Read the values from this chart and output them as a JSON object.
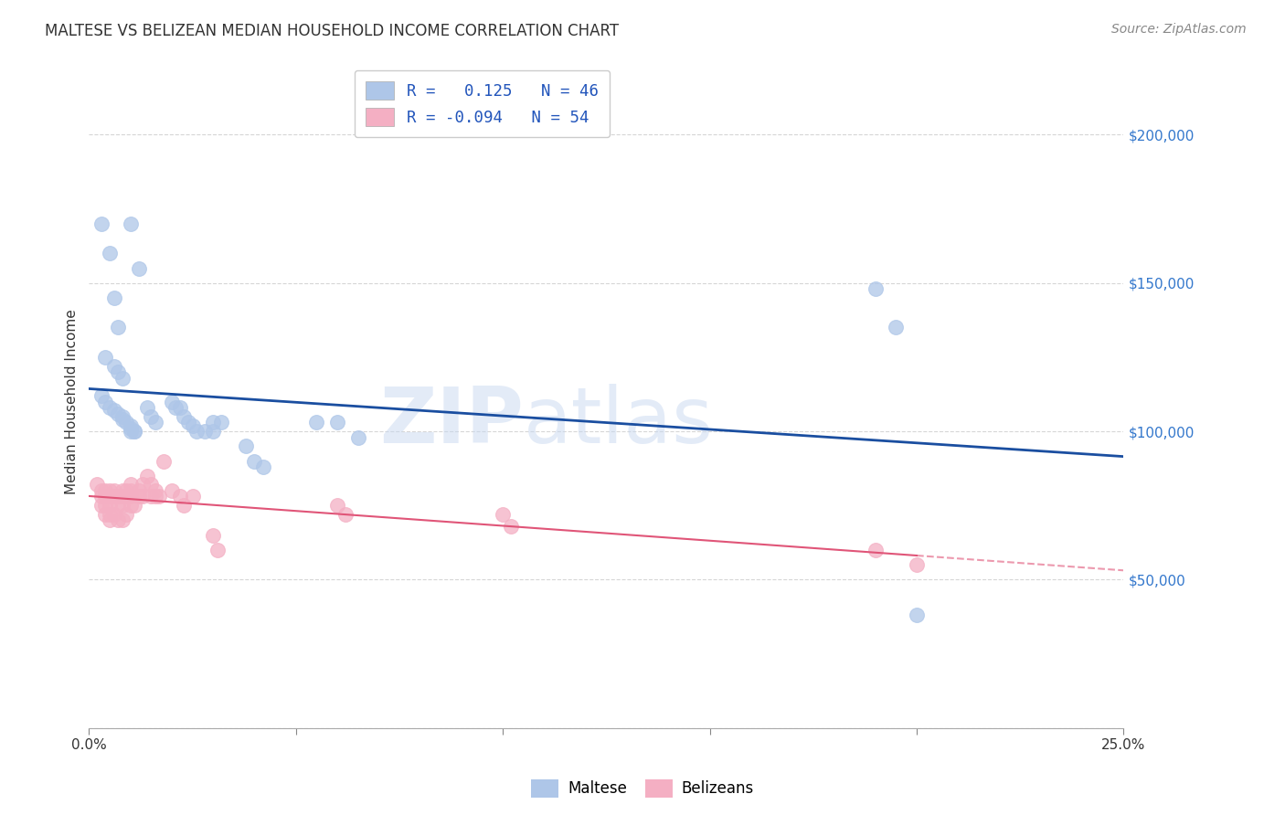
{
  "title": "MALTESE VS BELIZEAN MEDIAN HOUSEHOLD INCOME CORRELATION CHART",
  "source": "Source: ZipAtlas.com",
  "ylabel": "Median Household Income",
  "xlim": [
    0.0,
    0.25
  ],
  "ylim": [
    0,
    220000
  ],
  "yticks": [
    0,
    50000,
    100000,
    150000,
    200000
  ],
  "ytick_labels": [
    "",
    "$50,000",
    "$100,000",
    "$150,000",
    "$200,000"
  ],
  "xticks": [
    0.0,
    0.05,
    0.1,
    0.15,
    0.2,
    0.25
  ],
  "xtick_labels": [
    "0.0%",
    "",
    "",
    "",
    "",
    "25.0%"
  ],
  "blue_color": "#aec6e8",
  "pink_color": "#f4afc3",
  "blue_line_color": "#1a4ea0",
  "pink_line_color": "#e05578",
  "background_color": "#ffffff",
  "grid_color": "#cccccc",
  "maltese_x": [
    0.003,
    0.01,
    0.005,
    0.012,
    0.006,
    0.007,
    0.004,
    0.006,
    0.007,
    0.008,
    0.003,
    0.004,
    0.005,
    0.006,
    0.007,
    0.008,
    0.008,
    0.009,
    0.01,
    0.01,
    0.01,
    0.011,
    0.011,
    0.014,
    0.015,
    0.016,
    0.02,
    0.021,
    0.022,
    0.023,
    0.024,
    0.025,
    0.026,
    0.028,
    0.03,
    0.03,
    0.032,
    0.038,
    0.04,
    0.042,
    0.055,
    0.06,
    0.065,
    0.19,
    0.195,
    0.2
  ],
  "maltese_y": [
    170000,
    170000,
    160000,
    155000,
    145000,
    135000,
    125000,
    122000,
    120000,
    118000,
    112000,
    110000,
    108000,
    107000,
    106000,
    105000,
    104000,
    103000,
    102000,
    101000,
    100000,
    100000,
    100000,
    108000,
    105000,
    103000,
    110000,
    108000,
    108000,
    105000,
    103000,
    102000,
    100000,
    100000,
    100000,
    103000,
    103000,
    95000,
    90000,
    88000,
    103000,
    103000,
    98000,
    148000,
    135000,
    38000
  ],
  "belizean_x": [
    0.002,
    0.003,
    0.003,
    0.003,
    0.004,
    0.004,
    0.004,
    0.004,
    0.005,
    0.005,
    0.005,
    0.005,
    0.005,
    0.006,
    0.006,
    0.006,
    0.007,
    0.007,
    0.007,
    0.008,
    0.008,
    0.008,
    0.008,
    0.009,
    0.009,
    0.009,
    0.01,
    0.01,
    0.01,
    0.01,
    0.011,
    0.012,
    0.012,
    0.013,
    0.013,
    0.014,
    0.015,
    0.015,
    0.016,
    0.016,
    0.017,
    0.018,
    0.02,
    0.022,
    0.023,
    0.025,
    0.03,
    0.031,
    0.06,
    0.062,
    0.1,
    0.102,
    0.19,
    0.2
  ],
  "belizean_y": [
    82000,
    80000,
    78000,
    75000,
    80000,
    78000,
    75000,
    72000,
    80000,
    78000,
    75000,
    72000,
    70000,
    80000,
    78000,
    72000,
    78000,
    75000,
    70000,
    80000,
    78000,
    75000,
    70000,
    80000,
    78000,
    72000,
    82000,
    80000,
    78000,
    75000,
    75000,
    80000,
    78000,
    82000,
    78000,
    85000,
    82000,
    78000,
    80000,
    78000,
    78000,
    90000,
    80000,
    78000,
    75000,
    78000,
    65000,
    60000,
    75000,
    72000,
    72000,
    68000,
    60000,
    55000
  ]
}
